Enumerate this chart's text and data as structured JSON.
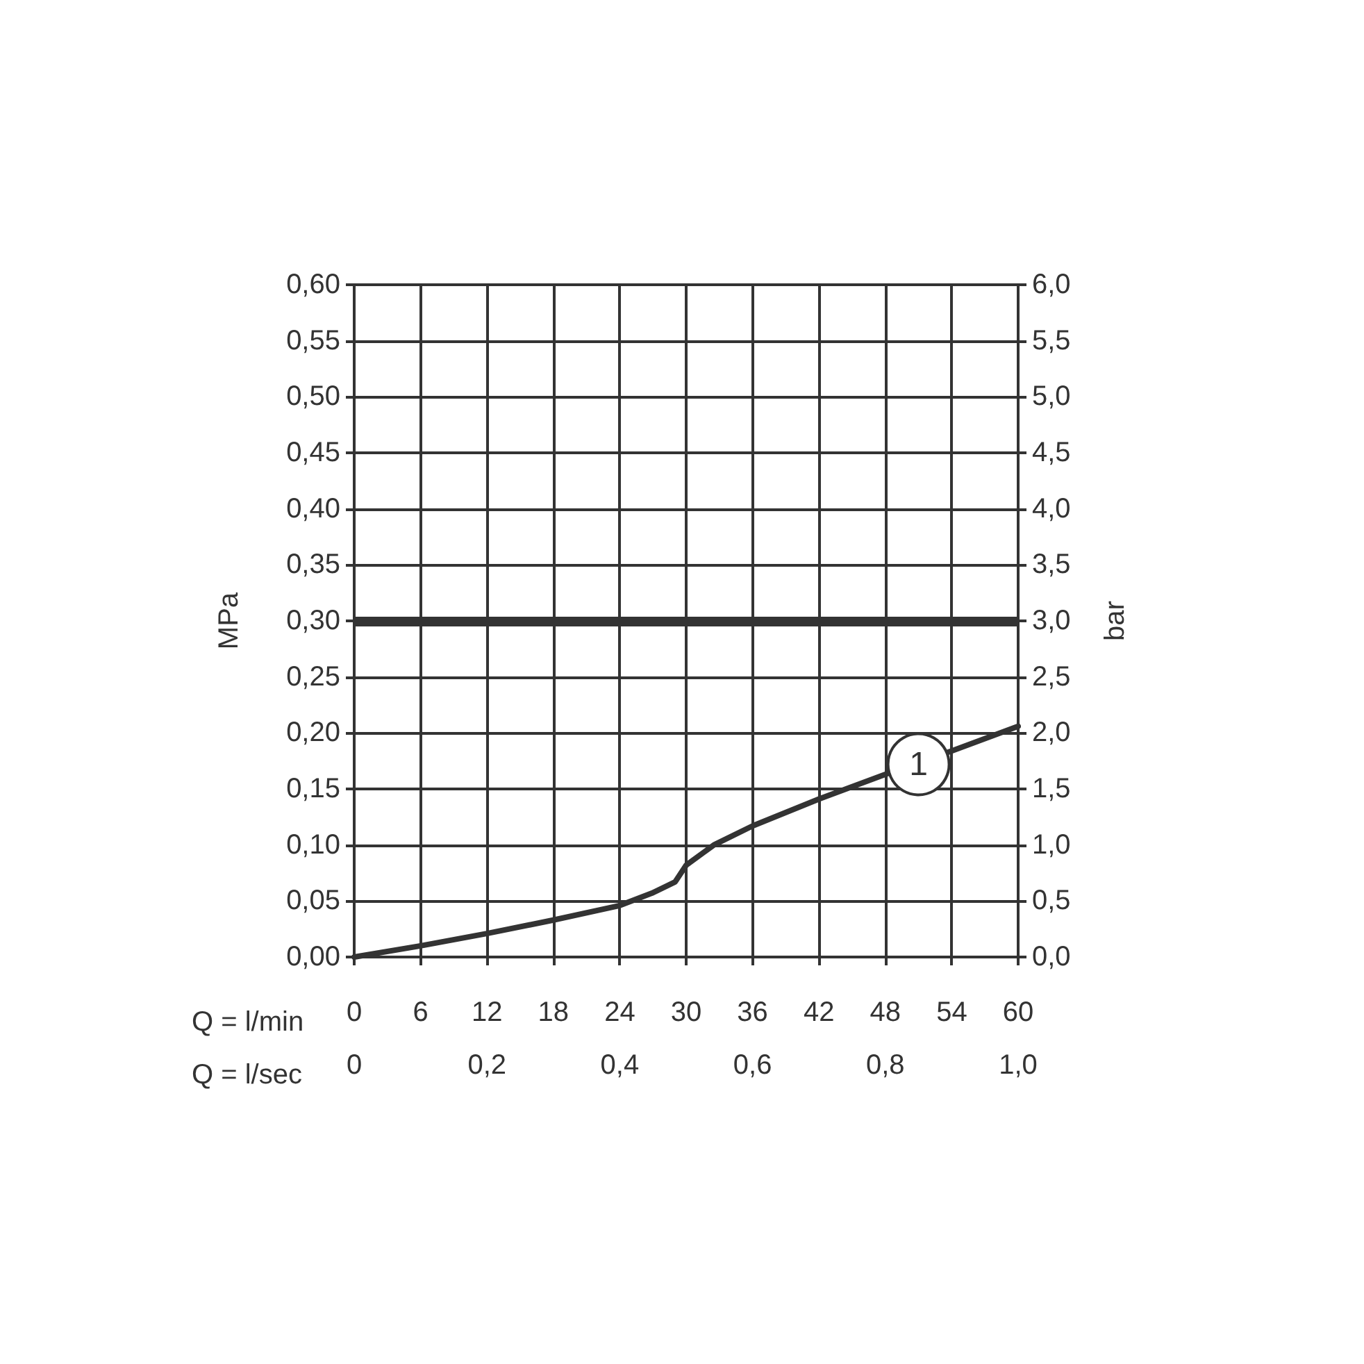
{
  "chart_data": {
    "type": "line",
    "xlabel": "Q = l/min",
    "x2label": "Q = l/sec",
    "ylabel": "MPa",
    "y2label": "bar",
    "xlim": [
      0,
      60
    ],
    "xticks": [
      0,
      6,
      12,
      18,
      24,
      30,
      36,
      42,
      48,
      54,
      60
    ],
    "x2lim": [
      0,
      1
    ],
    "x2ticks": [
      0,
      {
        "value": 0.2,
        "label": "0,2"
      },
      {
        "value": 0.4,
        "label": "0,4"
      },
      {
        "value": 0.6,
        "label": "0,6"
      },
      {
        "value": 0.8,
        "label": "0,8"
      },
      {
        "value": 1,
        "label": "1,0"
      }
    ],
    "ylim": [
      0,
      0.6
    ],
    "yticks": [
      {
        "value": 0,
        "label": "0,00"
      },
      {
        "value": 0.05,
        "label": "0,05"
      },
      {
        "value": 0.1,
        "label": "0,10"
      },
      {
        "value": 0.15,
        "label": "0,15"
      },
      {
        "value": 0.2,
        "label": "0,20"
      },
      {
        "value": 0.25,
        "label": "0,25"
      },
      {
        "value": 0.3,
        "label": "0,30"
      },
      {
        "value": 0.35,
        "label": "0,35"
      },
      {
        "value": 0.4,
        "label": "0,40"
      },
      {
        "value": 0.45,
        "label": "0,45"
      },
      {
        "value": 0.5,
        "label": "0,50"
      },
      {
        "value": 0.55,
        "label": "0,55"
      },
      {
        "value": 0.6,
        "label": "0,60"
      }
    ],
    "y2lim": [
      0,
      6
    ],
    "y2ticks": [
      {
        "value": 0,
        "label": "0,0"
      },
      {
        "value": 0.5,
        "label": "0,5"
      },
      {
        "value": 1,
        "label": "1,0"
      },
      {
        "value": 1.5,
        "label": "1,5"
      },
      {
        "value": 2,
        "label": "2,0"
      },
      {
        "value": 2.5,
        "label": "2,5"
      },
      {
        "value": 3,
        "label": "3,0"
      },
      {
        "value": 3.5,
        "label": "3,5"
      },
      {
        "value": 4,
        "label": "4,0"
      },
      {
        "value": 4.5,
        "label": "4,5"
      },
      {
        "value": 5,
        "label": "5,0"
      },
      {
        "value": 5.5,
        "label": "5,5"
      },
      {
        "value": 6,
        "label": "6,0"
      }
    ],
    "series": [
      {
        "color": "#333333",
        "x": [
          0,
          6,
          12,
          18,
          24,
          26.9,
          29,
          30,
          32.5,
          36,
          42,
          48,
          54,
          60
        ],
        "values": [
          0,
          0.01,
          0.021,
          0.033,
          0.046,
          0.057,
          0.067,
          0.082,
          0.1,
          0.117,
          0.141,
          0.163,
          0.184,
          0.206
        ]
      }
    ],
    "ref_lines": [
      {
        "axis": "y",
        "value": 0.3,
        "color": "#333333"
      }
    ],
    "annotations": [
      {
        "text": "1",
        "x": 51,
        "y": 0.172
      }
    ],
    "grid": true,
    "marker": "none",
    "line_style": "solid"
  }
}
